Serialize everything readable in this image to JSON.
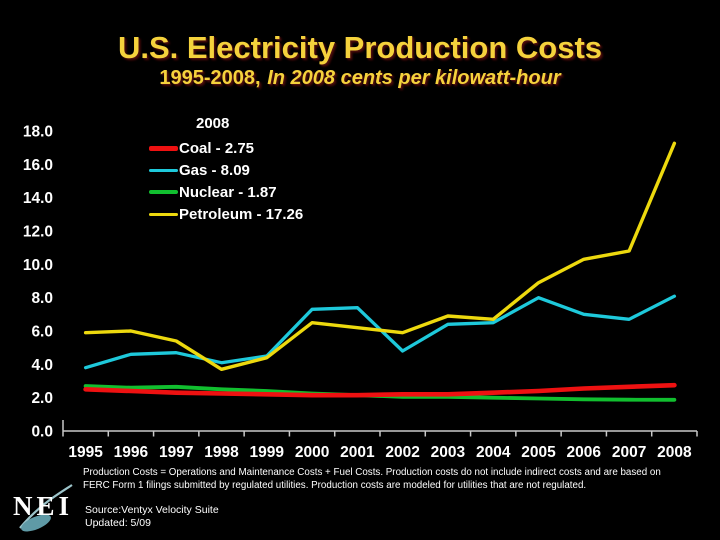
{
  "title": "U.S. Electricity Production Costs",
  "subtitle": {
    "prefix": "1995-2008,",
    "italic": "In 2008 cents per kilowatt-hour"
  },
  "colors": {
    "background": "#000000",
    "title_text": "#F5D23C",
    "axis": "#C9C9C9",
    "label_text": "#FFFFFF",
    "coal": "#EE1111",
    "gas": "#1EC9DB",
    "nuclear": "#11BF2F",
    "petroleum": "#EDD90E",
    "logo_swoosh": "#9CC4CA",
    "logo_comet": "#5F9AA6"
  },
  "legend": {
    "header": "2008",
    "items": [
      {
        "series": "coal",
        "label": "Coal - 2.75"
      },
      {
        "series": "gas",
        "label": "Gas - 8.09"
      },
      {
        "series": "nuclear",
        "label": "Nuclear - 1.87"
      },
      {
        "series": "petroleum",
        "label": "Petroleum - 17.26"
      }
    ]
  },
  "chart_data": {
    "type": "line",
    "title": "U.S. Electricity Production Costs",
    "subtitle": "1995-2008, In 2008 cents per kilowatt-hour",
    "units": "2008 cents per kilowatt-hour",
    "x": [
      1995,
      1996,
      1997,
      1998,
      1999,
      2000,
      2001,
      2002,
      2003,
      2004,
      2005,
      2006,
      2007,
      2008
    ],
    "series": [
      {
        "name": "Coal",
        "color_key": "coal",
        "values": [
          2.5,
          2.4,
          2.3,
          2.25,
          2.2,
          2.15,
          2.15,
          2.2,
          2.2,
          2.3,
          2.4,
          2.55,
          2.65,
          2.75
        ],
        "label_2008": 2.75
      },
      {
        "name": "Gas",
        "color_key": "gas",
        "values": [
          3.8,
          4.6,
          4.7,
          4.1,
          4.5,
          7.3,
          7.4,
          4.8,
          6.4,
          6.5,
          8.0,
          7.0,
          6.7,
          8.09
        ],
        "label_2008": 8.09
      },
      {
        "name": "Nuclear",
        "color_key": "nuclear",
        "values": [
          2.7,
          2.6,
          2.65,
          2.5,
          2.4,
          2.25,
          2.15,
          2.05,
          2.05,
          2.0,
          1.95,
          1.9,
          1.88,
          1.87
        ],
        "label_2008": 1.87
      },
      {
        "name": "Petroleum",
        "color_key": "petroleum",
        "values": [
          5.9,
          6.0,
          5.4,
          3.7,
          4.4,
          6.5,
          6.2,
          5.9,
          6.9,
          6.7,
          8.9,
          10.3,
          10.8,
          17.26
        ],
        "label_2008": 17.26
      }
    ],
    "ylim": [
      0,
      18
    ],
    "ytick_step": 2,
    "ytick_labels": [
      "0.0",
      "2.0",
      "4.0",
      "6.0",
      "8.0",
      "10.0",
      "12.0",
      "14.0",
      "16.0",
      "18.0"
    ],
    "grid": false,
    "legend_position": "upper-left"
  },
  "footnote": {
    "line1": "Production Costs = Operations and Maintenance Costs + Fuel Costs. Production costs do not include indirect costs and are based on",
    "line2": "FERC Form 1 filings submitted by regulated utilities. Production costs are modeled for utilities that are not regulated."
  },
  "source": {
    "line1": "Source:Ventyx Velocity Suite",
    "line2": "Updated: 5/09"
  },
  "logo": {
    "text": "NEI"
  }
}
